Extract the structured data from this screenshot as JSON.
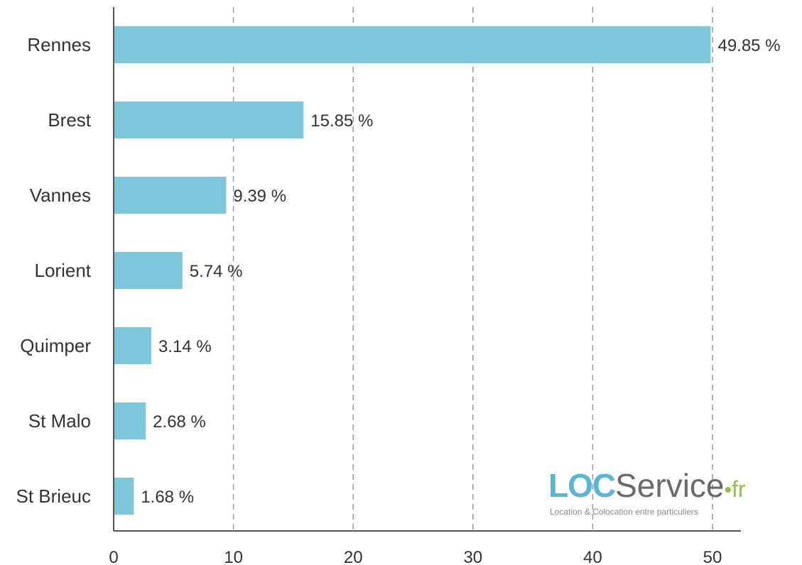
{
  "chart_data": {
    "type": "bar",
    "orientation": "horizontal",
    "categories": [
      "Rennes",
      "Brest",
      "Vannes",
      "Lorient",
      "Quimper",
      "St Malo",
      "St Brieuc"
    ],
    "values": [
      49.85,
      15.85,
      9.39,
      5.74,
      3.14,
      2.68,
      1.68
    ],
    "value_labels": [
      "49.85 %",
      "15.85 %",
      "9.39 %",
      "5.74 %",
      "3.14 %",
      "2.68 %",
      "1.68 %"
    ],
    "xticks": [
      "0",
      "10",
      "20",
      "30",
      "40",
      "50"
    ],
    "xlim": [
      0,
      50
    ],
    "title": "",
    "xlabel": "",
    "ylabel": "",
    "grid": "vertical dashed",
    "colors": {
      "bar": "#7ec6d9",
      "grid": "#9a9a9a",
      "axis": "#555555"
    }
  },
  "logo": {
    "brand_loc": "LOC",
    "brand_service": "Service",
    "brand_dot": "•",
    "brand_fr": "fr",
    "tagline": "Location & Colocation entre particuliers"
  }
}
